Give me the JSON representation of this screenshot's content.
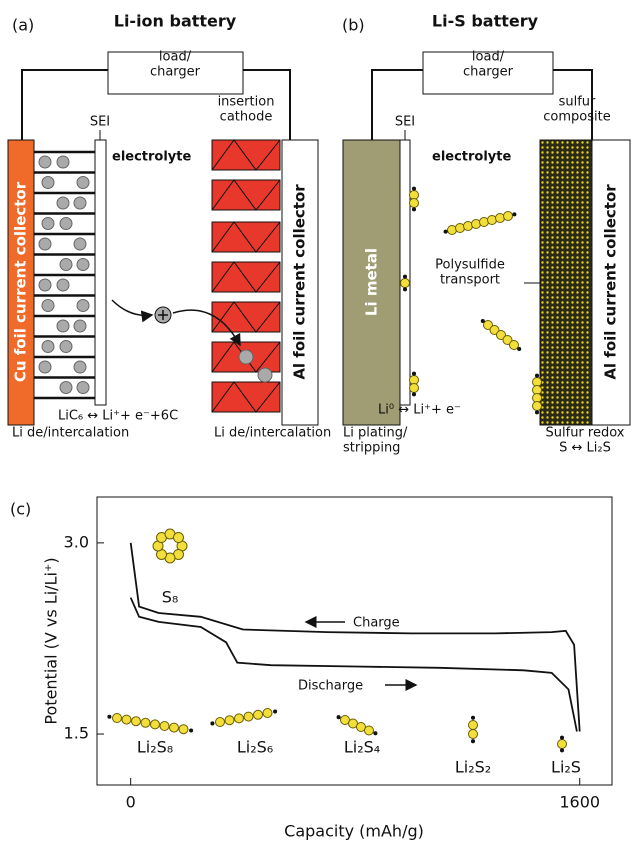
{
  "panel_a": {
    "label": "(a)",
    "title": "Li-ion battery",
    "load": "load/\ncharger",
    "sei": "SEI",
    "cathode": "insertion\ncathode",
    "electrolyte": "electrolyte",
    "anode_collector": "Cu foil current collector",
    "cathode_collector": "Al foil current collector",
    "reaction": "LiC₆ ↔ Li⁺+ e⁻+6C",
    "anode_process": "Li de/intercalation",
    "cathode_process": "Li de/intercalation"
  },
  "panel_b": {
    "label": "(b)",
    "title": "Li-S battery",
    "load": "load/\ncharger",
    "sei": "SEI",
    "cathode": "sulfur\ncomposite",
    "electrolyte": "electrolyte",
    "anode": "Li metal",
    "transport": "Polysulfide\ntransport",
    "cathode_collector": "Al foil current collector",
    "reaction": "Li⁰ ↔ Li⁺+ e⁻",
    "anode_process": "Li plating/\nstripping",
    "cathode_process": "Sulfur redox\nS ↔ Li₂S"
  },
  "chart_data": {
    "type": "line",
    "panel_label": "(c)",
    "x_label": "Capacity (mAh/g)",
    "y_label": "Potential (V vs Li/Li⁺)",
    "xlim": [
      -120,
      1715
    ],
    "ylim": [
      1.1,
      3.36
    ],
    "xticks": [
      0,
      1600
    ],
    "yticks": [
      {
        "value": 3,
        "label": "3.0"
      },
      1.5
    ],
    "series": [
      {
        "name": "Charge",
        "color": "#111111",
        "x": [
          0,
          30,
          100,
          250,
          400,
          700,
          1000,
          1300,
          1500,
          1550,
          1580,
          1600
        ],
        "values": [
          3.0,
          2.5,
          2.45,
          2.42,
          2.32,
          2.3,
          2.29,
          2.29,
          2.3,
          2.31,
          2.2,
          1.52
        ]
      },
      {
        "name": "Discharge",
        "color": "#111111",
        "x": [
          0,
          30,
          100,
          250,
          340,
          380,
          500,
          800,
          1100,
          1400,
          1500,
          1560,
          1590
        ],
        "values": [
          2.57,
          2.42,
          2.38,
          2.34,
          2.22,
          2.06,
          2.04,
          2.03,
          2.02,
          2.0,
          1.98,
          1.85,
          1.52
        ]
      }
    ],
    "annotations": [
      "S₈",
      "Li₂S₈",
      "Li₂S₆",
      "Li₂S₄",
      "Li₂S₂",
      "Li₂S"
    ]
  }
}
